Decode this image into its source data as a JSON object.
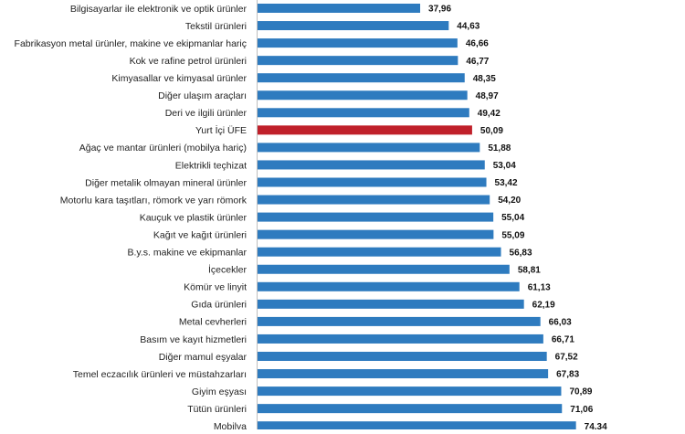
{
  "chart_data": {
    "type": "bar",
    "orientation": "horizontal",
    "title": "",
    "xlabel": "",
    "ylabel": "",
    "xlim": [
      0,
      100
    ],
    "grid": false,
    "legend": "none",
    "categories": [
      "Bilgisayarlar ile elektronik ve optik ürünler",
      "Tekstil ürünleri",
      "Fabrikasyon metal ürünler, makine ve ekipmanlar hariç",
      "Kok ve rafine petrol ürünleri",
      "Kimyasallar ve kimyasal ürünler",
      "Diğer ulaşım araçları",
      "Deri ve ilgili ürünler",
      "Yurt İçi ÜFE",
      "Ağaç ve mantar ürünleri (mobilya hariç)",
      "Elektrikli teçhizat",
      "Diğer metalik olmayan mineral ürünler",
      "Motorlu kara taşıtları, römork ve yarı römork",
      "Kauçuk ve plastik ürünler",
      "Kağıt ve kağıt ürünleri",
      "B.y.s. makine ve ekipmanlar",
      "İçecekler",
      "Kömür ve linyit",
      "Gıda ürünleri",
      "Metal cevherleri",
      "Basım ve kayıt hizmetleri",
      "Diğer mamul eşyalar",
      "Temel eczacılık ürünleri ve müstahzarları",
      "Giyim eşyası",
      "Tütün ürünleri",
      "Mobilya"
    ],
    "values": [
      37.96,
      44.63,
      46.66,
      46.77,
      48.35,
      48.97,
      49.42,
      50.09,
      51.88,
      53.04,
      53.42,
      54.2,
      55.04,
      55.09,
      56.83,
      58.81,
      61.13,
      62.19,
      66.03,
      66.71,
      67.52,
      67.83,
      70.89,
      71.06,
      74.34
    ],
    "value_labels": [
      "37,96",
      "44,63",
      "46,66",
      "46,77",
      "48,35",
      "48,97",
      "49,42",
      "50,09",
      "51,88",
      "53,04",
      "53,42",
      "54,20",
      "55,04",
      "55,09",
      "56,83",
      "58,81",
      "61,13",
      "62,19",
      "66,03",
      "66,71",
      "67,52",
      "67,83",
      "70,89",
      "71,06",
      "74,34"
    ],
    "highlight_index": 7,
    "colors": {
      "bar": "#2e7bbf",
      "highlight": "#c0202a",
      "label": "#222222",
      "value": "#111111"
    }
  }
}
